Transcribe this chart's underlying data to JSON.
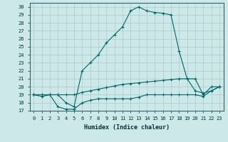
{
  "xlabel": "Humidex (Indice chaleur)",
  "xlim": [
    -0.5,
    23.5
  ],
  "ylim": [
    17,
    30.5
  ],
  "yticks": [
    17,
    18,
    19,
    20,
    21,
    22,
    23,
    24,
    25,
    26,
    27,
    28,
    29,
    30
  ],
  "xticks": [
    0,
    1,
    2,
    3,
    4,
    5,
    6,
    7,
    8,
    9,
    10,
    11,
    12,
    13,
    14,
    15,
    16,
    17,
    18,
    19,
    20,
    21,
    22,
    23
  ],
  "bg_color": "#cce8e8",
  "line_color": "#006666",
  "grid_color": "#aacccc",
  "x_max": [
    0,
    1,
    2,
    3,
    4,
    5,
    6,
    7,
    8,
    9,
    10,
    11,
    12,
    13,
    14,
    15,
    16,
    17,
    18,
    19,
    20,
    21,
    22,
    23
  ],
  "y_max": [
    19,
    19,
    19,
    19,
    18,
    17.5,
    22,
    23,
    24,
    25.5,
    26.5,
    27.5,
    29.5,
    30,
    29.5,
    29.3,
    29.2,
    29,
    24.5,
    21,
    21,
    19,
    20,
    20
  ],
  "x_mean": [
    0,
    1,
    2,
    3,
    4,
    5,
    6,
    7,
    8,
    9,
    10,
    11,
    12,
    13,
    14,
    15,
    16,
    17,
    18,
    19,
    20,
    21,
    22,
    23
  ],
  "y_mean": [
    19,
    19,
    19,
    19,
    19,
    19,
    19.3,
    19.5,
    19.7,
    19.9,
    20.1,
    20.3,
    20.4,
    20.5,
    20.6,
    20.7,
    20.8,
    20.9,
    21.0,
    21.0,
    19.5,
    19.2,
    19.5,
    20.0
  ],
  "x_min": [
    0,
    1,
    2,
    3,
    4,
    5,
    6,
    7,
    8,
    9,
    10,
    11,
    12,
    13,
    14,
    15,
    16,
    17,
    18,
    19,
    20,
    21,
    22,
    23
  ],
  "y_min": [
    19,
    18.8,
    19,
    17.5,
    17.2,
    17.2,
    18.0,
    18.3,
    18.5,
    18.5,
    18.5,
    18.5,
    18.5,
    18.7,
    19,
    19,
    19,
    19,
    19,
    19,
    19,
    18.8,
    19.5,
    20
  ]
}
